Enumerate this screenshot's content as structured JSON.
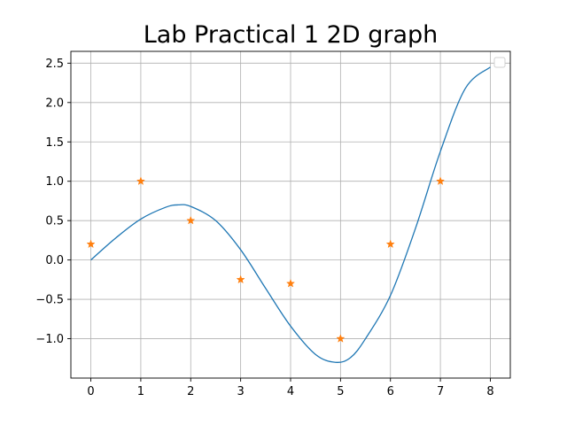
{
  "chart_data": {
    "type": "line",
    "title": "Lab Practical 1 2D graph",
    "xlabel": "",
    "ylabel": "",
    "xlim": [
      -0.4,
      8.4
    ],
    "ylim": [
      -1.5,
      2.65
    ],
    "xticks": [
      0,
      1,
      2,
      3,
      4,
      5,
      6,
      7,
      8
    ],
    "yticks": [
      -1.0,
      -0.5,
      0.0,
      0.5,
      1.0,
      1.5,
      2.0,
      2.5
    ],
    "xtick_labels": [
      "0",
      "1",
      "2",
      "3",
      "4",
      "5",
      "6",
      "7",
      "8"
    ],
    "ytick_labels": [
      "−1.0",
      "−0.5",
      "0.0",
      "0.5",
      "1.0",
      "1.5",
      "2.0",
      "2.5"
    ],
    "grid": true,
    "legend": "top-right",
    "series": [
      {
        "type": "line",
        "color": "#1f77b4",
        "x": [
          0,
          0.5,
          1,
          1.5,
          1.75,
          2,
          2.5,
          3,
          3.5,
          4,
          4.5,
          4.9,
          5.2,
          5.5,
          6,
          6.5,
          7,
          7.5,
          8
        ],
        "y": [
          0,
          0.28,
          0.52,
          0.67,
          0.7,
          0.68,
          0.5,
          0.13,
          -0.36,
          -0.84,
          -1.2,
          -1.3,
          -1.24,
          -1.0,
          -0.45,
          0.4,
          1.38,
          2.18,
          2.45
        ]
      },
      {
        "type": "scatter",
        "marker": "star",
        "color": "#ff7f0e",
        "x": [
          0,
          1,
          2,
          3,
          4,
          5,
          6,
          7
        ],
        "y": [
          0.2,
          1.0,
          0.5,
          -0.25,
          -0.3,
          -1.0,
          0.2,
          1.0
        ]
      }
    ]
  }
}
